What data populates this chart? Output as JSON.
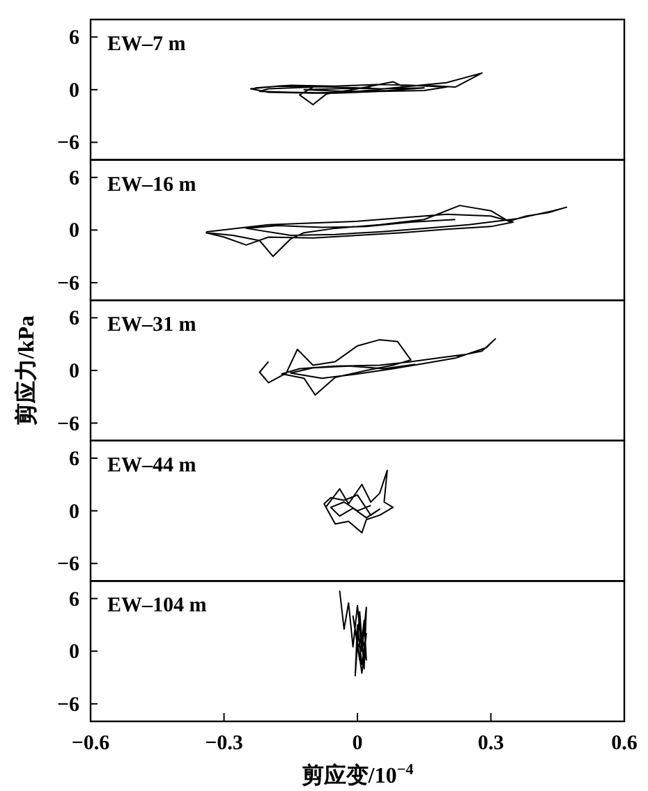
{
  "chart_data": [
    {
      "type": "line",
      "title": "EW–7 m",
      "xlim": [
        -0.6,
        0.6
      ],
      "ylim": [
        -8,
        8
      ],
      "yticks": [
        -6,
        0,
        6
      ],
      "tick_labels": "y",
      "series": [
        {
          "color": "#000000",
          "x": [
            -0.23,
            -0.15,
            -0.05,
            0.05,
            0.12,
            0.2,
            0.15,
            0.05,
            -0.05,
            -0.15,
            -0.22,
            -0.2,
            -0.1,
            -0.13,
            -0.1,
            -0.07,
            0,
            0.08,
            0.1,
            0.15,
            0.22,
            0.28,
            0.2,
            0.1,
            0,
            -0.1,
            -0.2,
            -0.24,
            -0.18,
            -0.05,
            0.05,
            0.15,
            0.07,
            -0.03,
            -0.12,
            -0.05,
            0.03
          ],
          "values": [
            0.2,
            0.5,
            0.4,
            0.6,
            0.5,
            0.3,
            -0.1,
            -0.2,
            -0.4,
            -0.3,
            -0.2,
            0.1,
            0.3,
            -0.6,
            -1.7,
            -0.5,
            0.1,
            0.9,
            0.4,
            0.5,
            0.3,
            1.9,
            0.8,
            0.3,
            -0.2,
            -0.4,
            -0.3,
            0.1,
            0.4,
            0.3,
            0.1,
            0.2,
            -0.1,
            -0.2,
            0,
            0.1,
            0.2
          ]
        }
      ]
    },
    {
      "type": "line",
      "title": "EW–16 m",
      "xlim": [
        -0.6,
        0.6
      ],
      "ylim": [
        -8,
        8
      ],
      "yticks": [
        -6,
        0,
        6
      ],
      "tick_labels": "y",
      "series": [
        {
          "color": "#000000",
          "x": [
            -0.34,
            -0.2,
            -0.1,
            0,
            0.1,
            0.2,
            0.3,
            0.35,
            0.3,
            0.2,
            0.1,
            0,
            -0.1,
            -0.2,
            -0.25,
            -0.3,
            -0.34,
            -0.28,
            -0.22,
            -0.19,
            -0.15,
            -0.12,
            -0.05,
            0.05,
            0.15,
            0.23,
            0.3,
            0.34,
            0.38,
            0.43,
            0.47,
            0.44,
            0.36,
            0.25,
            0.15,
            0.05,
            -0.05,
            -0.15,
            -0.25,
            -0.18,
            -0.08,
            0.02,
            0.12,
            0.22
          ],
          "values": [
            -0.2,
            0.6,
            0.8,
            1.0,
            1.4,
            1.8,
            1.6,
            0.9,
            0.4,
            0.1,
            -0.3,
            -0.6,
            -0.9,
            -0.8,
            -1.7,
            -0.8,
            -0.3,
            -0.6,
            -1.2,
            -3.0,
            -1.0,
            -0.3,
            0.2,
            0.6,
            1.2,
            2.8,
            2.2,
            1.0,
            1.6,
            2.0,
            2.6,
            2.2,
            1.3,
            0.6,
            0.2,
            -0.2,
            -0.5,
            -0.6,
            0.2,
            0.5,
            0.3,
            0.4,
            0.9,
            1.2
          ]
        }
      ]
    },
    {
      "type": "line",
      "title": "EW–31 m",
      "ylabel": "剪应力/kPa",
      "xlim": [
        -0.6,
        0.6
      ],
      "ylim": [
        -8,
        8
      ],
      "yticks": [
        -6,
        0,
        6
      ],
      "tick_labels": "y",
      "series": [
        {
          "color": "#000000",
          "x": [
            -0.2,
            -0.22,
            -0.2,
            -0.16,
            -0.135,
            -0.1,
            -0.05,
            0,
            0.05,
            0.09,
            0.12,
            0.08,
            0.02,
            -0.05,
            -0.095,
            -0.12,
            -0.17,
            -0.13,
            -0.05,
            0.05,
            0.12,
            0.18,
            0.24,
            0.28,
            0.31,
            0.29,
            0.22,
            0.15,
            0.08,
            0,
            -0.08,
            -0.15,
            -0.1,
            -0.02,
            0.06,
            0.13
          ],
          "values": [
            1.0,
            -0.2,
            -1.4,
            -0.3,
            2.4,
            0.6,
            1.0,
            2.8,
            3.5,
            3.3,
            1.2,
            0.6,
            0,
            -0.8,
            -2.8,
            -0.9,
            -0.4,
            0.2,
            0.5,
            0.6,
            1.0,
            1.4,
            1.8,
            2.2,
            3.6,
            2.6,
            1.4,
            0.8,
            0.2,
            -0.4,
            -0.9,
            -0.3,
            0.3,
            0.5,
            0.2,
            0.7
          ]
        }
      ]
    },
    {
      "type": "line",
      "title": "EW–44 m",
      "xlim": [
        -0.6,
        0.6
      ],
      "ylim": [
        -8,
        8
      ],
      "yticks": [
        -6,
        0,
        6
      ],
      "tick_labels": "y",
      "series": [
        {
          "color": "#000000",
          "x": [
            -0.07,
            -0.04,
            -0.02,
            0.01,
            0.03,
            0.05,
            0.067,
            0.06,
            0.08,
            0.05,
            0.02,
            0.01,
            -0.02,
            -0.05,
            -0.075,
            -0.06,
            -0.03,
            0,
            0.03,
            0.05,
            0.02,
            -0.01,
            -0.04,
            -0.06,
            -0.03,
            0,
            0.03
          ],
          "values": [
            0.5,
            2.5,
            0.8,
            3.0,
            1.0,
            2.0,
            4.6,
            1.0,
            0.4,
            -0.5,
            -1.0,
            -2.5,
            -1.2,
            -1.5,
            0.8,
            1.5,
            1.2,
            1.8,
            -0.5,
            0.2,
            -0.8,
            0.3,
            -0.6,
            0.4,
            1.0,
            0,
            0.6
          ]
        }
      ]
    },
    {
      "type": "line",
      "title": "EW–104 m",
      "xlabel": "剪应变/10$^{−4}$",
      "xlim": [
        -0.6,
        0.6
      ],
      "ylim": [
        -8,
        8
      ],
      "xticks": [
        -0.6,
        -0.3,
        0,
        0.3,
        0.6
      ],
      "yticks": [
        -6,
        0,
        6
      ],
      "series": [
        {
          "color": "#000000",
          "x": [
            -0.04,
            -0.03,
            -0.02,
            -0.01,
            0,
            0.01,
            0.02,
            0.015,
            0.005,
            -0.005,
            0,
            0.01,
            0.02,
            0.01,
            0,
            -0.01,
            0.005,
            0.015,
            0.02,
            0.01,
            0
          ],
          "values": [
            6.9,
            2.5,
            5.5,
            0.5,
            5.2,
            0,
            5.0,
            -2.0,
            4.5,
            -2.8,
            3.0,
            -1.5,
            2.0,
            -2.5,
            1.0,
            4.0,
            -1.0,
            3.5,
            -1.0,
            2.0,
            0
          ]
        }
      ]
    }
  ]
}
